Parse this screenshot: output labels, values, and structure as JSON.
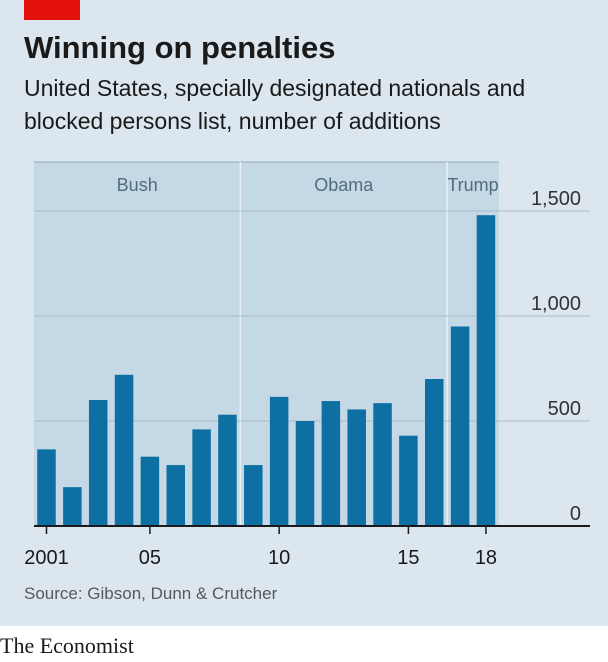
{
  "header": {
    "title": "Winning on penalties",
    "subtitle": "United States, specially designated nationals and blocked persons list, number of additions"
  },
  "footer": {
    "source": "Source: Gibson, Dunn & Crutcher",
    "brand": "The Economist"
  },
  "colors": {
    "accent": "#e3120b",
    "bar": "#0e6fa3",
    "background": "#dbe6ee",
    "era_band": "#c5d8e5"
  },
  "chart_data": {
    "type": "bar",
    "title": "Winning on penalties",
    "subtitle": "United States, specially designated nationals and blocked persons list, number of additions",
    "x": [
      2001,
      2002,
      2003,
      2004,
      2005,
      2006,
      2007,
      2008,
      2009,
      2010,
      2011,
      2012,
      2013,
      2014,
      2015,
      2016,
      2017,
      2018
    ],
    "values": [
      365,
      185,
      600,
      720,
      330,
      290,
      460,
      530,
      290,
      615,
      500,
      595,
      555,
      585,
      430,
      700,
      950,
      1480
    ],
    "x_tick_labels": [
      "2001",
      "05",
      "10",
      "15",
      "18"
    ],
    "x_tick_years": [
      2001,
      2005,
      2010,
      2015,
      2018
    ],
    "y_ticks": [
      0,
      500,
      1000,
      1500
    ],
    "y_tick_labels": [
      "0",
      "500",
      "1,000",
      "1,500"
    ],
    "ylim": [
      0,
      1500
    ],
    "grid": true,
    "y_axis_side": "right",
    "eras": [
      {
        "label": "Bush",
        "start": 2001,
        "end": 2008
      },
      {
        "label": "Obama",
        "start": 2009,
        "end": 2016
      },
      {
        "label": "Trump",
        "start": 2017,
        "end": 2018
      }
    ],
    "xlabel": "",
    "ylabel": ""
  }
}
